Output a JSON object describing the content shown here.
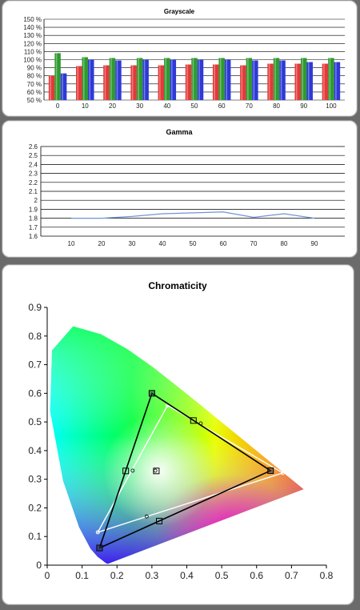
{
  "panels": {
    "grayscale_title": "Grayscale",
    "gamma_title": "Gamma",
    "chromaticity_title": "Chromaticity"
  },
  "chart_data": [
    {
      "type": "bar",
      "title": "Grayscale",
      "categories": [
        "0",
        "10",
        "20",
        "30",
        "40",
        "50",
        "60",
        "70",
        "80",
        "90",
        "100"
      ],
      "ylim": [
        50,
        150
      ],
      "yticks": [
        "50 %",
        "60 %",
        "70 %",
        "80 %",
        "90 %",
        "100 %",
        "110 %",
        "120 %",
        "130 %",
        "140 %",
        "150 %"
      ],
      "grid": true,
      "series": [
        {
          "color": "#e23a3a",
          "values": [
            80,
            92,
            93,
            93,
            93,
            94,
            94,
            93,
            95,
            95,
            95
          ]
        },
        {
          "color": "#2f9a2f",
          "values": [
            108,
            103,
            102,
            102,
            102,
            102,
            102,
            102,
            102,
            102,
            102
          ]
        },
        {
          "color": "#2e3ad6",
          "values": [
            83,
            100,
            99,
            100,
            100,
            100,
            100,
            99,
            99,
            97,
            97
          ]
        }
      ]
    },
    {
      "type": "line",
      "title": "Gamma",
      "x": [
        10,
        20,
        30,
        40,
        50,
        60,
        70,
        80,
        90
      ],
      "y": [
        1.8,
        1.8,
        1.82,
        1.85,
        1.86,
        1.87,
        1.81,
        1.85,
        1.8
      ],
      "xlim": [
        0,
        100
      ],
      "ylim": [
        1.6,
        2.6
      ],
      "xticks": [
        "10",
        "20",
        "30",
        "40",
        "50",
        "60",
        "70",
        "80",
        "90"
      ],
      "yticks": [
        "1.6",
        "1.7",
        "1.8",
        "1.9",
        "2",
        "2.1",
        "2.2",
        "2.3",
        "2.4",
        "2.5",
        "2.6"
      ],
      "grid": true,
      "line_color": "#6f94d2"
    },
    {
      "type": "scatter",
      "title": "Chromaticity",
      "xlim": [
        0,
        0.8
      ],
      "ylim": [
        0,
        0.9
      ],
      "xticks": [
        "0",
        "0.1",
        "0.2",
        "0.3",
        "0.4",
        "0.5",
        "0.6",
        "0.7",
        "0.8"
      ],
      "yticks": [
        "0",
        "0.1",
        "0.2",
        "0.3",
        "0.4",
        "0.5",
        "0.6",
        "0.7",
        "0.8",
        "0.9"
      ],
      "target_gamut": {
        "color": "#000000",
        "points": [
          [
            0.64,
            0.33
          ],
          [
            0.3,
            0.6
          ],
          [
            0.15,
            0.06
          ]
        ]
      },
      "target_secondaries": [
        [
          0.225,
          0.329
        ],
        [
          0.321,
          0.154
        ],
        [
          0.419,
          0.505
        ]
      ],
      "target_white": [
        0.3127,
        0.329
      ],
      "measured_gamut": {
        "color": "#ffffff",
        "points": [
          [
            0.675,
            0.322
          ],
          [
            0.345,
            0.558
          ],
          [
            0.145,
            0.115
          ]
        ]
      },
      "measured_secondaries": [
        [
          0.245,
          0.33
        ],
        [
          0.285,
          0.17
        ],
        [
          0.44,
          0.495
        ]
      ],
      "measured_white": [
        0.31,
        0.33
      ]
    }
  ]
}
